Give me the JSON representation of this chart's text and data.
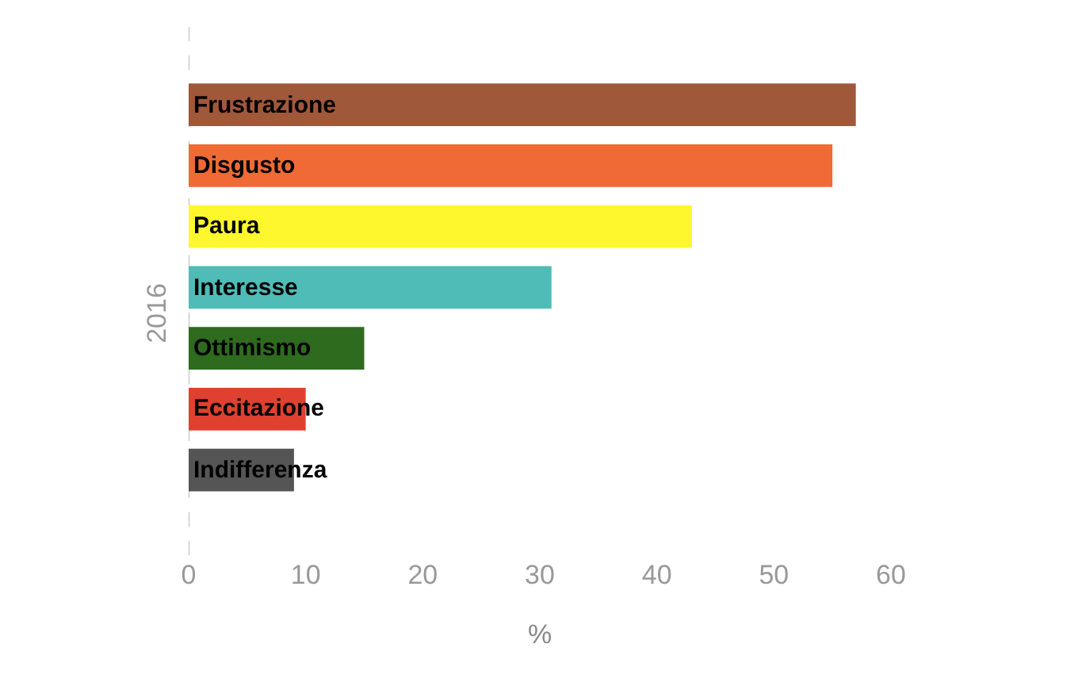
{
  "chart_data": {
    "type": "bar",
    "orientation": "horizontal",
    "ylabel": "2016",
    "xlabel": "%",
    "categories": [
      "Frustrazione",
      "Disgusto",
      "Paura",
      "Interesse",
      "Ottimismo",
      "Eccitazione",
      "Indifferenza"
    ],
    "values": [
      57,
      55,
      43,
      31,
      15,
      10,
      9
    ],
    "colors": [
      "#a0583a",
      "#ef6a35",
      "#fff72e",
      "#4fbcb8",
      "#2e6b1f",
      "#e0402f",
      "#555555"
    ],
    "xlim": [
      0,
      60
    ],
    "xticks": [
      0,
      10,
      20,
      30,
      40,
      50,
      60
    ],
    "legend": false,
    "tick_labels": "x",
    "ref_lines": [
      {
        "axis": "x",
        "value": 0,
        "color": "#bbbbbb",
        "line_style": "dashed"
      }
    ]
  }
}
